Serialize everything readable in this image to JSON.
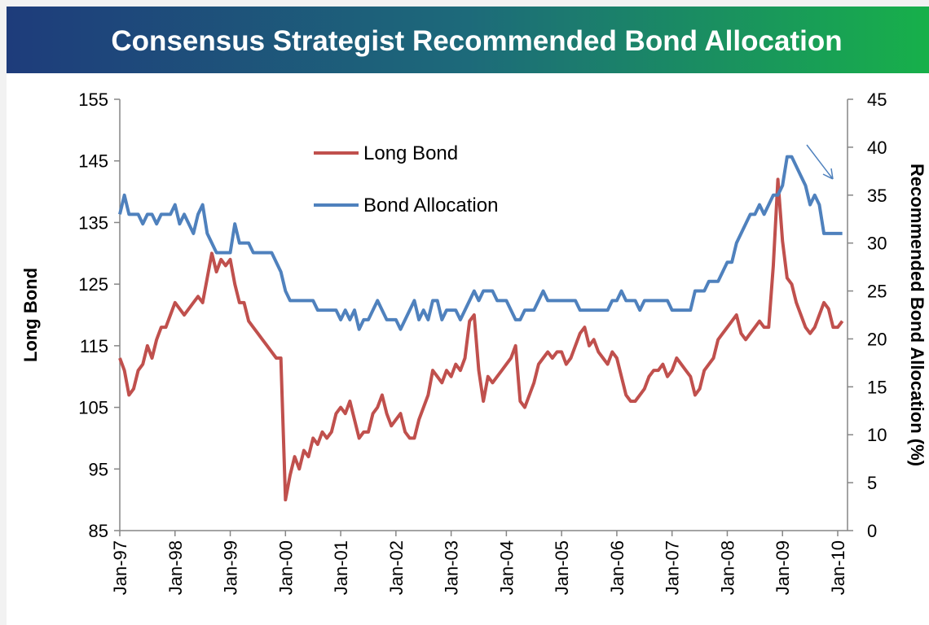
{
  "chart_data": {
    "type": "line",
    "title": "Consensus Strategist Recommended Bond Allocation",
    "ylabel": "Long Bond",
    "y2label": "Recommended Bond Allocation (%)",
    "x": [
      "Jan-97",
      "Feb-97",
      "Mar-97",
      "Apr-97",
      "May-97",
      "Jun-97",
      "Jul-97",
      "Aug-97",
      "Sep-97",
      "Oct-97",
      "Nov-97",
      "Dec-97",
      "Jan-98",
      "Feb-98",
      "Mar-98",
      "Apr-98",
      "May-98",
      "Jun-98",
      "Jul-98",
      "Aug-98",
      "Sep-98",
      "Oct-98",
      "Nov-98",
      "Dec-98",
      "Jan-99",
      "Feb-99",
      "Mar-99",
      "Apr-99",
      "May-99",
      "Jun-99",
      "Jul-99",
      "Aug-99",
      "Sep-99",
      "Oct-99",
      "Nov-99",
      "Dec-99",
      "Jan-00",
      "Feb-00",
      "Mar-00",
      "Apr-00",
      "May-00",
      "Jun-00",
      "Jul-00",
      "Aug-00",
      "Sep-00",
      "Oct-00",
      "Nov-00",
      "Dec-00",
      "Jan-01",
      "Feb-01",
      "Mar-01",
      "Apr-01",
      "May-01",
      "Jun-01",
      "Jul-01",
      "Aug-01",
      "Sep-01",
      "Oct-01",
      "Nov-01",
      "Dec-01",
      "Jan-02",
      "Feb-02",
      "Mar-02",
      "Apr-02",
      "May-02",
      "Jun-02",
      "Jul-02",
      "Aug-02",
      "Sep-02",
      "Oct-02",
      "Nov-02",
      "Dec-02",
      "Jan-03",
      "Feb-03",
      "Mar-03",
      "Apr-03",
      "May-03",
      "Jun-03",
      "Jul-03",
      "Aug-03",
      "Sep-03",
      "Oct-03",
      "Nov-03",
      "Dec-03",
      "Jan-04",
      "Feb-04",
      "Mar-04",
      "Apr-04",
      "May-04",
      "Jun-04",
      "Jul-04",
      "Aug-04",
      "Sep-04",
      "Oct-04",
      "Nov-04",
      "Dec-04",
      "Jan-05",
      "Feb-05",
      "Mar-05",
      "Apr-05",
      "May-05",
      "Jun-05",
      "Jul-05",
      "Aug-05",
      "Sep-05",
      "Oct-05",
      "Nov-05",
      "Dec-05",
      "Jan-06",
      "Feb-06",
      "Mar-06",
      "Apr-06",
      "May-06",
      "Jun-06",
      "Jul-06",
      "Aug-06",
      "Sep-06",
      "Oct-06",
      "Nov-06",
      "Dec-06",
      "Jan-07",
      "Feb-07",
      "Mar-07",
      "Apr-07",
      "May-07",
      "Jun-07",
      "Jul-07",
      "Aug-07",
      "Sep-07",
      "Oct-07",
      "Nov-07",
      "Dec-07",
      "Jan-08",
      "Feb-08",
      "Mar-08",
      "Apr-08",
      "May-08",
      "Jun-08",
      "Jul-08",
      "Aug-08",
      "Sep-08",
      "Oct-08",
      "Nov-08",
      "Dec-08",
      "Jan-09",
      "Feb-09",
      "Mar-09",
      "Apr-09",
      "May-09",
      "Jun-09",
      "Jul-09",
      "Aug-09",
      "Sep-09",
      "Oct-09",
      "Nov-09",
      "Dec-09",
      "Jan-10",
      "Feb-10"
    ],
    "xticks": [
      "Jan-97",
      "Jan-98",
      "Jan-99",
      "Jan-00",
      "Jan-01",
      "Jan-02",
      "Jan-03",
      "Jan-04",
      "Jan-05",
      "Jan-06",
      "Jan-07",
      "Jan-08",
      "Jan-09",
      "Jan-10"
    ],
    "ylim": [
      85,
      155
    ],
    "yticks": [
      85,
      95,
      105,
      115,
      125,
      135,
      145,
      155
    ],
    "y2lim": [
      0,
      45
    ],
    "y2ticks": [
      0,
      5,
      10,
      15,
      20,
      25,
      30,
      35,
      40,
      45
    ],
    "series": [
      {
        "name": "Long Bond",
        "color": "#c0504d",
        "values": [
          113,
          111,
          107,
          108,
          111,
          112,
          115,
          113,
          116,
          118,
          118,
          120,
          122,
          121,
          120,
          121,
          122,
          123,
          122,
          126,
          130,
          127,
          129,
          128,
          129,
          125,
          122,
          122,
          119,
          118,
          117,
          116,
          115,
          114,
          113,
          113,
          90,
          94,
          97,
          95,
          98,
          97,
          100,
          99,
          101,
          100,
          101,
          104,
          105,
          104,
          106,
          103,
          100,
          101,
          101,
          104,
          105,
          107,
          104,
          102,
          103,
          104,
          101,
          100,
          100,
          103,
          105,
          107,
          111,
          110,
          109,
          111,
          110,
          112,
          111,
          113,
          119,
          120,
          111,
          106,
          110,
          109,
          110,
          111,
          112,
          113,
          115,
          106,
          105,
          107,
          109,
          112,
          113,
          114,
          113,
          114,
          114,
          112,
          113,
          115,
          117,
          118,
          115,
          116,
          114,
          113,
          112,
          114,
          113,
          110,
          107,
          106,
          106,
          107,
          108,
          110,
          111,
          111,
          112,
          110,
          111,
          113,
          112,
          111,
          110,
          107,
          108,
          111,
          112,
          113,
          116,
          117,
          118,
          119,
          120,
          117,
          116,
          117,
          118,
          119,
          118,
          118,
          128,
          142,
          132,
          126,
          125,
          122,
          120,
          118,
          117,
          118,
          120,
          122,
          121,
          118,
          118,
          119
        ]
      },
      {
        "name": "Bond Allocation",
        "color": "#4f81bd",
        "axis": "y2",
        "values": [
          33,
          35,
          33,
          33,
          33,
          32,
          33,
          33,
          32,
          33,
          33,
          33,
          34,
          32,
          33,
          32,
          31,
          33,
          34,
          31,
          30,
          29,
          29,
          29,
          29,
          32,
          30,
          30,
          30,
          29,
          29,
          29,
          29,
          29,
          28,
          27,
          25,
          24,
          24,
          24,
          24,
          24,
          24,
          23,
          23,
          23,
          23,
          23,
          22,
          23,
          22,
          23,
          21,
          22,
          22,
          23,
          24,
          23,
          22,
          22,
          22,
          21,
          22,
          23,
          24,
          22,
          23,
          22,
          24,
          24,
          22,
          23,
          23,
          23,
          22,
          23,
          24,
          25,
          24,
          25,
          25,
          25,
          24,
          24,
          24,
          23,
          22,
          22,
          23,
          23,
          23,
          24,
          25,
          24,
          24,
          24,
          24,
          24,
          24,
          24,
          23,
          23,
          23,
          23,
          23,
          23,
          23,
          24,
          24,
          25,
          24,
          24,
          24,
          23,
          24,
          24,
          24,
          24,
          24,
          24,
          23,
          23,
          23,
          23,
          23,
          25,
          25,
          25,
          26,
          26,
          26,
          27,
          28,
          28,
          30,
          31,
          32,
          33,
          33,
          34,
          33,
          34,
          35,
          35,
          36,
          39,
          39,
          38,
          37,
          36,
          34,
          35,
          34,
          31,
          31,
          31,
          31,
          31
        ]
      }
    ]
  }
}
